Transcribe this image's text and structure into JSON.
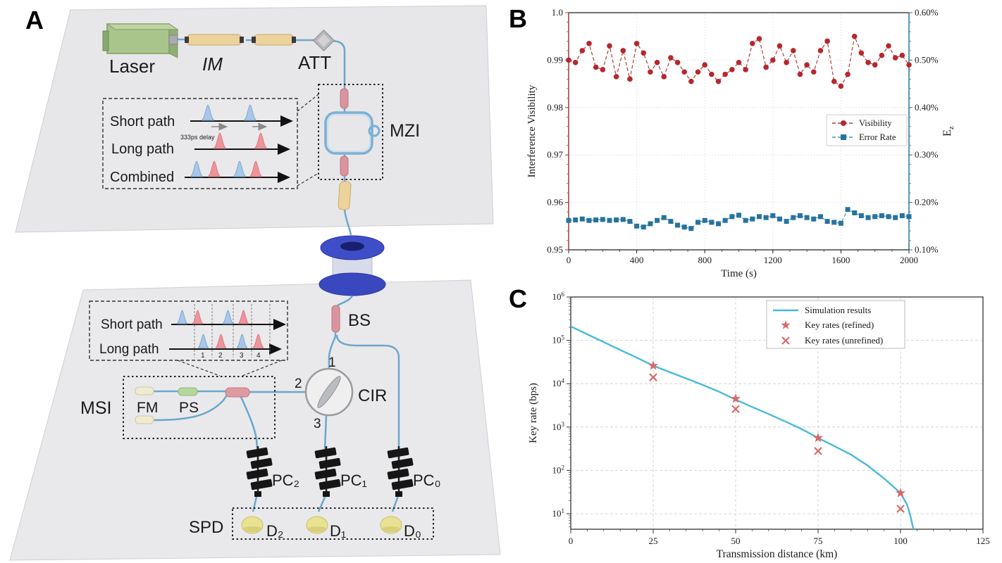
{
  "figure": {
    "panel_a": "A",
    "panel_b": "B",
    "panel_c": "C"
  },
  "diagram": {
    "laser_label": "Laser",
    "im_label": "IM",
    "att_label": "ATT",
    "mzi_label": "MZI",
    "bs_label": "BS",
    "cir_label": "CIR",
    "cir_port1": "1",
    "cir_port2": "2",
    "cir_port3": "3",
    "msi_label": "MSI",
    "fm_label": "FM",
    "ps_label": "PS",
    "spd_label": "SPD",
    "pc2_label": "PC₂",
    "pc1_label": "PC₁",
    "pc0_label": "PC₀",
    "d2_label": "D₂",
    "d1_label": "D₁",
    "d0_label": "D₀",
    "inset_top": {
      "row1": "Short path",
      "row2": "Long path",
      "row3": "Combined",
      "delay_note": "333ps delay"
    },
    "inset_bottom": {
      "row1": "Short path",
      "row2": "Long path",
      "numbers": [
        "1",
        "2",
        "3",
        "4"
      ]
    }
  },
  "chart_data": [
    {
      "panel": "B",
      "type": "line",
      "xlabel": "Time (s)",
      "ylabel_left": "Interference Visibility",
      "ylabel_right_base": "E",
      "ylabel_right_sub": "z",
      "xlim": [
        0,
        2000
      ],
      "left_ylim": [
        0.95,
        1.0
      ],
      "right_ylim": [
        0.1,
        0.6
      ],
      "x_ticks": [
        0,
        400,
        800,
        1200,
        1600,
        2000
      ],
      "left_tick_labels": [
        "1.0",
        "0.99",
        "0.98",
        "0.97",
        "0.96",
        "0.95"
      ],
      "left_tick_values": [
        1.0,
        0.99,
        0.98,
        0.97,
        0.96,
        0.95
      ],
      "right_tick_labels": [
        "0.60%",
        "0.50%",
        "0.40%",
        "0.30%",
        "0.20%",
        "0.10%"
      ],
      "right_tick_values": [
        0.6,
        0.5,
        0.4,
        0.3,
        0.2,
        0.1
      ],
      "grid": true,
      "legend_position": "center right",
      "colors": {
        "visibility": "#b5282e",
        "visibility_line": "#a8403f",
        "error": "#2773a0",
        "error_line": "#4a8fae",
        "left_axis": "#a03a35",
        "right_axis": "#2773a0"
      },
      "x_step": 40,
      "series": [
        {
          "name": "Visibility",
          "axis": "left",
          "marker": "circle",
          "values": [
            0.99,
            0.9895,
            0.992,
            0.9935,
            0.9885,
            0.988,
            0.993,
            0.9865,
            0.992,
            0.986,
            0.9935,
            0.9915,
            0.9875,
            0.9895,
            0.9865,
            0.9905,
            0.9895,
            0.9875,
            0.9855,
            0.9875,
            0.989,
            0.987,
            0.9855,
            0.987,
            0.988,
            0.9895,
            0.988,
            0.9935,
            0.9945,
            0.9885,
            0.99,
            0.993,
            0.9895,
            0.992,
            0.987,
            0.989,
            0.9875,
            0.992,
            0.994,
            0.9855,
            0.9845,
            0.987,
            0.995,
            0.9915,
            0.9895,
            0.989,
            0.991,
            0.993,
            0.9905,
            0.991,
            0.989
          ]
        },
        {
          "name": "Error Rate",
          "axis": "right",
          "marker": "square",
          "values": [
            0.162,
            0.163,
            0.165,
            0.162,
            0.163,
            0.164,
            0.162,
            0.163,
            0.164,
            0.16,
            0.15,
            0.148,
            0.155,
            0.162,
            0.168,
            0.16,
            0.152,
            0.148,
            0.145,
            0.158,
            0.162,
            0.158,
            0.155,
            0.162,
            0.17,
            0.173,
            0.162,
            0.165,
            0.17,
            0.168,
            0.172,
            0.165,
            0.16,
            0.168,
            0.172,
            0.168,
            0.165,
            0.17,
            0.16,
            0.158,
            0.156,
            0.185,
            0.178,
            0.172,
            0.168,
            0.17,
            0.172,
            0.17,
            0.168,
            0.172,
            0.17
          ]
        }
      ]
    },
    {
      "panel": "C",
      "type": "line+scatter",
      "xlabel": "Transmission distance (km)",
      "ylabel": "Key rate (bps)",
      "xlim": [
        0,
        125
      ],
      "ylog": true,
      "y_tick_exponents": [
        6,
        5,
        4,
        3,
        2,
        1
      ],
      "x_ticks": [
        0,
        25,
        50,
        75,
        100,
        125
      ],
      "grid": true,
      "legend_position": "upper right",
      "colors": {
        "simulation": "#49b9d9",
        "markers": "#d76a6a"
      },
      "legend": [
        "Simulation results",
        "Key rates (refined)",
        "Key rates (unrefined)"
      ],
      "simulation": {
        "x": [
          0,
          5,
          10,
          15,
          20,
          25,
          30,
          35,
          40,
          45,
          50,
          55,
          60,
          65,
          70,
          75,
          80,
          85,
          90,
          95,
          100,
          101,
          102,
          103,
          104
        ],
        "y": [
          210000,
          138000,
          91000,
          60000,
          40000,
          26000,
          18500,
          13200,
          9400,
          6500,
          4300,
          2900,
          2000,
          1350,
          900,
          560,
          360,
          230,
          130,
          65,
          30,
          22,
          16,
          9,
          4
        ]
      },
      "refined": {
        "x": [
          25,
          50,
          75,
          100
        ],
        "y": [
          26000,
          4500,
          560,
          30
        ]
      },
      "unrefined": {
        "x": [
          25,
          50,
          75,
          100
        ],
        "y": [
          14000,
          2600,
          280,
          13
        ]
      }
    }
  ]
}
